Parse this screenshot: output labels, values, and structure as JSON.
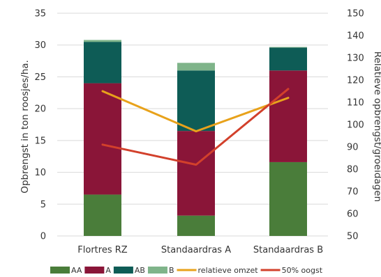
{
  "chart_data": {
    "type": "bar",
    "categories": [
      "Flortres RZ",
      "Standaardras A",
      "Standaardras B"
    ],
    "ylabel": "Opbrengst in ton roosjes/ha.",
    "y2label": "Relatieve opbrengst/groeidagen",
    "ylim": [
      0,
      35
    ],
    "y2lim": [
      50,
      150
    ],
    "yticks": [
      "0",
      "5",
      "10",
      "15",
      "20",
      "25",
      "30",
      "35"
    ],
    "y2ticks": [
      "50",
      "60",
      "70",
      "80",
      "90",
      "100",
      "110",
      "120",
      "130",
      "140",
      "150"
    ],
    "grid": true,
    "legend_position": "bottom",
    "series": [
      {
        "name": "AA",
        "type": "bar",
        "color": "#4a7d3a",
        "values": [
          6.5,
          3.2,
          11.6
        ]
      },
      {
        "name": "A",
        "type": "bar",
        "color": "#8a1538",
        "values": [
          17.5,
          13.3,
          14.4
        ]
      },
      {
        "name": "AB",
        "type": "bar",
        "color": "#0e5c56",
        "values": [
          6.5,
          9.5,
          3.6
        ]
      },
      {
        "name": "B",
        "type": "bar",
        "color": "#7fb48a",
        "values": [
          0.3,
          1.2,
          0.1
        ]
      },
      {
        "name": "relatieve omzet",
        "type": "line",
        "axis": "right",
        "color": "#e8a21b",
        "values": [
          115,
          97,
          112
        ]
      },
      {
        "name": "50% oogst",
        "type": "line",
        "axis": "right",
        "color": "#d2402b",
        "values": [
          91,
          82,
          116
        ]
      }
    ]
  }
}
